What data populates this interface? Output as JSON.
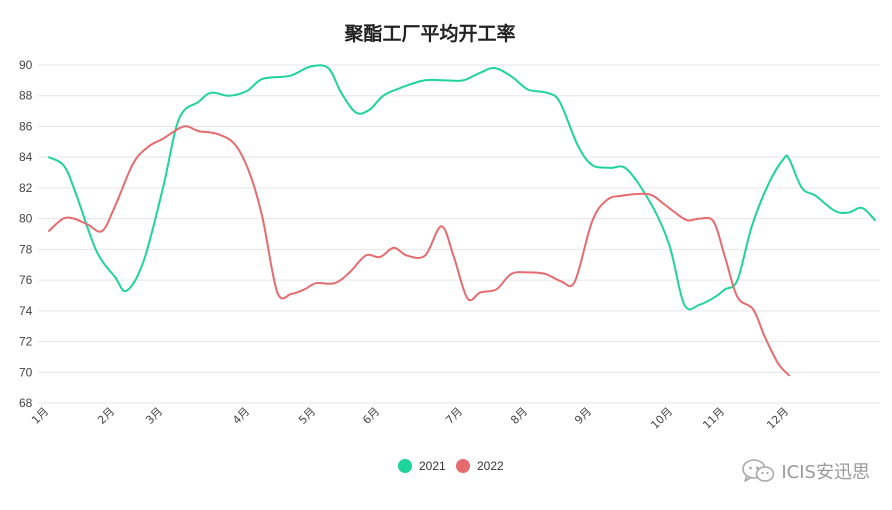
{
  "chart_data": {
    "type": "line",
    "title": "聚酯工厂平均开工率",
    "xlabel": "",
    "ylabel": "",
    "ylim": [
      68,
      90
    ],
    "yticks": [
      90,
      88,
      86,
      84,
      82,
      80,
      78,
      76,
      74,
      72,
      70,
      68
    ],
    "x_domain": [
      1,
      13
    ],
    "xtick_labels": [
      {
        "label": "1月",
        "x": 1.0
      },
      {
        "label": "2月",
        "x": 2.03
      },
      {
        "label": "3月",
        "x": 2.74
      },
      {
        "label": "4月",
        "x": 4.04
      },
      {
        "label": "5月",
        "x": 5.03
      },
      {
        "label": "6月",
        "x": 6.02
      },
      {
        "label": "7月",
        "x": 7.29
      },
      {
        "label": "8月",
        "x": 8.3
      },
      {
        "label": "9月",
        "x": 9.23
      },
      {
        "label": "10月",
        "x": 10.45
      },
      {
        "label": "11月",
        "x": 11.23
      },
      {
        "label": "12月",
        "x": 12.21
      }
    ],
    "grid": true,
    "legend": "bottom-center",
    "series": [
      {
        "name": "2021",
        "color": "#1fd49a",
        "points": [
          [
            1.0,
            84.0
          ],
          [
            1.24,
            83.4
          ],
          [
            1.43,
            81.5
          ],
          [
            1.74,
            77.9
          ],
          [
            2.03,
            76.2
          ],
          [
            2.2,
            75.3
          ],
          [
            2.45,
            77.2
          ],
          [
            2.74,
            82.0
          ],
          [
            2.98,
            86.5
          ],
          [
            3.27,
            87.6
          ],
          [
            3.46,
            88.2
          ],
          [
            3.72,
            88.0
          ],
          [
            3.99,
            88.3
          ],
          [
            4.23,
            89.1
          ],
          [
            4.64,
            89.3
          ],
          [
            4.95,
            89.9
          ],
          [
            5.22,
            89.8
          ],
          [
            5.42,
            88.2
          ],
          [
            5.65,
            86.9
          ],
          [
            5.86,
            87.1
          ],
          [
            6.07,
            88.0
          ],
          [
            6.33,
            88.5
          ],
          [
            6.7,
            89.0
          ],
          [
            7.03,
            89.0
          ],
          [
            7.29,
            89.0
          ],
          [
            7.56,
            89.5
          ],
          [
            7.79,
            89.8
          ],
          [
            8.06,
            89.2
          ],
          [
            8.3,
            88.4
          ],
          [
            8.57,
            88.2
          ],
          [
            8.76,
            87.6
          ],
          [
            9.02,
            84.8
          ],
          [
            9.23,
            83.5
          ],
          [
            9.5,
            83.3
          ],
          [
            9.76,
            83.2
          ],
          [
            10.14,
            80.8
          ],
          [
            10.4,
            78.2
          ],
          [
            10.62,
            74.4
          ],
          [
            10.85,
            74.4
          ],
          [
            11.08,
            74.9
          ],
          [
            11.23,
            75.4
          ],
          [
            11.42,
            76.0
          ],
          [
            11.64,
            79.5
          ],
          [
            11.9,
            82.3
          ],
          [
            12.13,
            83.9
          ],
          [
            12.21,
            83.9
          ],
          [
            12.4,
            82.0
          ],
          [
            12.6,
            81.5
          ],
          [
            12.89,
            80.5
          ],
          [
            13.09,
            80.4
          ],
          [
            13.29,
            80.7
          ],
          [
            13.48,
            79.9
          ]
        ]
      },
      {
        "name": "2022",
        "color": "#e56b6f",
        "points": [
          [
            1.0,
            79.2
          ],
          [
            1.22,
            80.0
          ],
          [
            1.39,
            80.0
          ],
          [
            1.61,
            79.6
          ],
          [
            1.83,
            79.2
          ],
          [
            2.03,
            80.8
          ],
          [
            2.3,
            83.6
          ],
          [
            2.53,
            84.7
          ],
          [
            2.74,
            85.2
          ],
          [
            3.05,
            86.0
          ],
          [
            3.27,
            85.7
          ],
          [
            3.56,
            85.5
          ],
          [
            3.82,
            84.8
          ],
          [
            4.04,
            82.9
          ],
          [
            4.23,
            80.0
          ],
          [
            4.45,
            75.2
          ],
          [
            4.66,
            75.1
          ],
          [
            4.86,
            75.4
          ],
          [
            5.03,
            75.8
          ],
          [
            5.32,
            75.8
          ],
          [
            5.55,
            76.5
          ],
          [
            5.8,
            77.6
          ],
          [
            6.02,
            77.5
          ],
          [
            6.23,
            78.1
          ],
          [
            6.43,
            77.6
          ],
          [
            6.71,
            77.6
          ],
          [
            6.96,
            79.5
          ],
          [
            7.15,
            77.5
          ],
          [
            7.36,
            74.8
          ],
          [
            7.56,
            75.2
          ],
          [
            7.81,
            75.4
          ],
          [
            8.04,
            76.4
          ],
          [
            8.3,
            76.5
          ],
          [
            8.55,
            76.4
          ],
          [
            8.79,
            75.9
          ],
          [
            8.98,
            75.9
          ],
          [
            9.23,
            79.8
          ],
          [
            9.45,
            81.2
          ],
          [
            9.69,
            81.5
          ],
          [
            10.08,
            81.6
          ],
          [
            10.3,
            81.0
          ],
          [
            10.45,
            80.5
          ],
          [
            10.66,
            79.9
          ],
          [
            10.85,
            80.0
          ],
          [
            11.06,
            79.8
          ],
          [
            11.23,
            77.5
          ],
          [
            11.42,
            74.9
          ],
          [
            11.66,
            74.1
          ],
          [
            11.84,
            72.3
          ],
          [
            12.04,
            70.6
          ],
          [
            12.21,
            69.8
          ]
        ]
      }
    ]
  },
  "watermark": {
    "text": "ICIS安迅思",
    "icon": "wechat-icon"
  }
}
